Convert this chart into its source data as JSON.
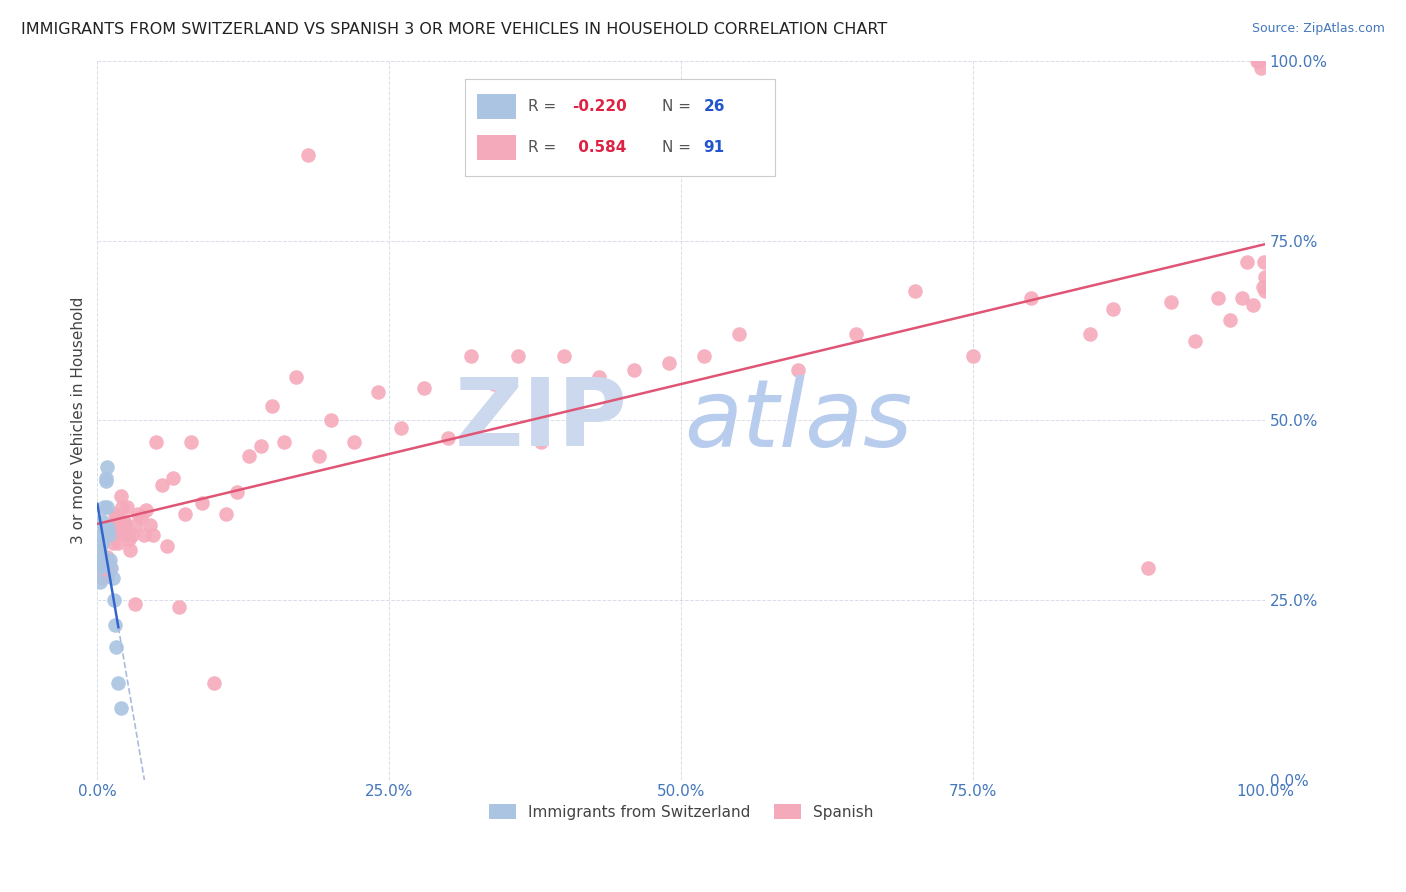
{
  "title": "IMMIGRANTS FROM SWITZERLAND VS SPANISH 3 OR MORE VEHICLES IN HOUSEHOLD CORRELATION CHART",
  "source": "Source: ZipAtlas.com",
  "ylabel": "3 or more Vehicles in Household",
  "xlim": [
    0,
    1.0
  ],
  "ylim": [
    0,
    1.0
  ],
  "xticks": [
    0.0,
    0.25,
    0.5,
    0.75,
    1.0
  ],
  "yticks": [
    0.0,
    0.25,
    0.5,
    0.75,
    1.0
  ],
  "xticklabels": [
    "0.0%",
    "25.0%",
    "50.0%",
    "75.0%",
    "100.0%"
  ],
  "yticklabels": [
    "0.0%",
    "25.0%",
    "50.0%",
    "75.0%",
    "100.0%"
  ],
  "switzerland_color": "#aac4e2",
  "spanish_color": "#f5aabb",
  "swiss_line_color": "#3366cc",
  "spanish_line_color": "#e05575",
  "swiss_dash_color": "#aabbdd",
  "swiss_R": -0.22,
  "swiss_N": 26,
  "spanish_R": 0.584,
  "spanish_N": 91,
  "watermark_zip_color": "#ccd8ee",
  "watermark_atlas_color": "#b8ccee",
  "legend_label_swiss": "Immigrants from Switzerland",
  "legend_label_spanish": "Spanish",
  "swiss_x": [
    0.001,
    0.001,
    0.002,
    0.002,
    0.003,
    0.003,
    0.004,
    0.004,
    0.005,
    0.005,
    0.006,
    0.006,
    0.007,
    0.007,
    0.008,
    0.008,
    0.009,
    0.01,
    0.011,
    0.012,
    0.013,
    0.014,
    0.015,
    0.016,
    0.018,
    0.02
  ],
  "swiss_y": [
    0.295,
    0.31,
    0.32,
    0.275,
    0.34,
    0.3,
    0.36,
    0.33,
    0.3,
    0.31,
    0.35,
    0.38,
    0.415,
    0.42,
    0.435,
    0.38,
    0.35,
    0.34,
    0.305,
    0.295,
    0.28,
    0.25,
    0.215,
    0.185,
    0.135,
    0.1
  ],
  "spanish_x": [
    0.004,
    0.005,
    0.006,
    0.007,
    0.008,
    0.009,
    0.01,
    0.011,
    0.012,
    0.013,
    0.014,
    0.015,
    0.015,
    0.016,
    0.017,
    0.018,
    0.019,
    0.02,
    0.021,
    0.022,
    0.023,
    0.024,
    0.025,
    0.026,
    0.027,
    0.028,
    0.03,
    0.032,
    0.033,
    0.035,
    0.037,
    0.04,
    0.042,
    0.045,
    0.048,
    0.05,
    0.055,
    0.06,
    0.065,
    0.07,
    0.075,
    0.08,
    0.09,
    0.1,
    0.11,
    0.12,
    0.13,
    0.14,
    0.15,
    0.16,
    0.17,
    0.18,
    0.19,
    0.2,
    0.22,
    0.24,
    0.26,
    0.28,
    0.3,
    0.32,
    0.34,
    0.36,
    0.38,
    0.4,
    0.43,
    0.46,
    0.49,
    0.52,
    0.55,
    0.6,
    0.65,
    0.7,
    0.75,
    0.8,
    0.85,
    0.87,
    0.9,
    0.92,
    0.94,
    0.96,
    0.97,
    0.98,
    0.985,
    0.99,
    0.993,
    0.995,
    0.997,
    0.998,
    0.999,
    1.0,
    1.0
  ],
  "spanish_y": [
    0.295,
    0.28,
    0.295,
    0.3,
    0.31,
    0.285,
    0.3,
    0.295,
    0.34,
    0.33,
    0.355,
    0.37,
    0.36,
    0.34,
    0.365,
    0.33,
    0.36,
    0.395,
    0.38,
    0.345,
    0.36,
    0.355,
    0.38,
    0.34,
    0.335,
    0.32,
    0.34,
    0.245,
    0.355,
    0.37,
    0.365,
    0.34,
    0.375,
    0.355,
    0.34,
    0.47,
    0.41,
    0.325,
    0.42,
    0.24,
    0.37,
    0.47,
    0.385,
    0.135,
    0.37,
    0.4,
    0.45,
    0.465,
    0.52,
    0.47,
    0.56,
    0.87,
    0.45,
    0.5,
    0.47,
    0.54,
    0.49,
    0.545,
    0.475,
    0.59,
    0.55,
    0.59,
    0.47,
    0.59,
    0.56,
    0.57,
    0.58,
    0.59,
    0.62,
    0.57,
    0.62,
    0.68,
    0.59,
    0.67,
    0.62,
    0.655,
    0.295,
    0.665,
    0.61,
    0.67,
    0.64,
    0.67,
    0.72,
    0.66,
    1.0,
    1.0,
    0.99,
    0.685,
    0.72,
    0.68,
    0.7
  ]
}
